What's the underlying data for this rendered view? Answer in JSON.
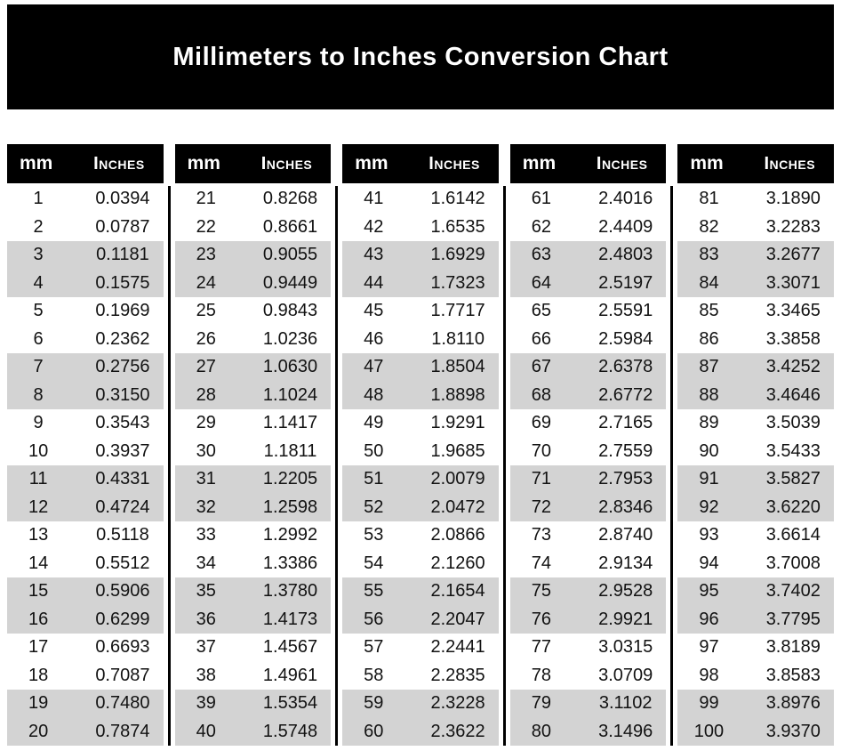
{
  "title": "Millimeters to Inches Conversion Chart",
  "header": {
    "mm": "mm",
    "inches": "Inches"
  },
  "layout": {
    "groups": 5,
    "rows_per_group": 20,
    "stripe_pattern": "pairs"
  },
  "colors": {
    "banner_bg": "#000000",
    "header_bg": "#000000",
    "header_text": "#ffffff",
    "stripe": "#d3d3d3",
    "row_bg": "#ffffff",
    "text": "#121212"
  },
  "chart_data": {
    "type": "table",
    "title": "Millimeters to Inches Conversion Chart",
    "columns": [
      "mm",
      "Inches"
    ],
    "rows": [
      [
        1,
        "0.0394"
      ],
      [
        2,
        "0.0787"
      ],
      [
        3,
        "0.1181"
      ],
      [
        4,
        "0.1575"
      ],
      [
        5,
        "0.1969"
      ],
      [
        6,
        "0.2362"
      ],
      [
        7,
        "0.2756"
      ],
      [
        8,
        "0.3150"
      ],
      [
        9,
        "0.3543"
      ],
      [
        10,
        "0.3937"
      ],
      [
        11,
        "0.4331"
      ],
      [
        12,
        "0.4724"
      ],
      [
        13,
        "0.5118"
      ],
      [
        14,
        "0.5512"
      ],
      [
        15,
        "0.5906"
      ],
      [
        16,
        "0.6299"
      ],
      [
        17,
        "0.6693"
      ],
      [
        18,
        "0.7087"
      ],
      [
        19,
        "0.7480"
      ],
      [
        20,
        "0.7874"
      ],
      [
        21,
        "0.8268"
      ],
      [
        22,
        "0.8661"
      ],
      [
        23,
        "0.9055"
      ],
      [
        24,
        "0.9449"
      ],
      [
        25,
        "0.9843"
      ],
      [
        26,
        "1.0236"
      ],
      [
        27,
        "1.0630"
      ],
      [
        28,
        "1.1024"
      ],
      [
        29,
        "1.1417"
      ],
      [
        30,
        "1.1811"
      ],
      [
        31,
        "1.2205"
      ],
      [
        32,
        "1.2598"
      ],
      [
        33,
        "1.2992"
      ],
      [
        34,
        "1.3386"
      ],
      [
        35,
        "1.3780"
      ],
      [
        36,
        "1.4173"
      ],
      [
        37,
        "1.4567"
      ],
      [
        38,
        "1.4961"
      ],
      [
        39,
        "1.5354"
      ],
      [
        40,
        "1.5748"
      ],
      [
        41,
        "1.6142"
      ],
      [
        42,
        "1.6535"
      ],
      [
        43,
        "1.6929"
      ],
      [
        44,
        "1.7323"
      ],
      [
        45,
        "1.7717"
      ],
      [
        46,
        "1.8110"
      ],
      [
        47,
        "1.8504"
      ],
      [
        48,
        "1.8898"
      ],
      [
        49,
        "1.9291"
      ],
      [
        50,
        "1.9685"
      ],
      [
        51,
        "2.0079"
      ],
      [
        52,
        "2.0472"
      ],
      [
        53,
        "2.0866"
      ],
      [
        54,
        "2.1260"
      ],
      [
        55,
        "2.1654"
      ],
      [
        56,
        "2.2047"
      ],
      [
        57,
        "2.2441"
      ],
      [
        58,
        "2.2835"
      ],
      [
        59,
        "2.3228"
      ],
      [
        60,
        "2.3622"
      ],
      [
        61,
        "2.4016"
      ],
      [
        62,
        "2.4409"
      ],
      [
        63,
        "2.4803"
      ],
      [
        64,
        "2.5197"
      ],
      [
        65,
        "2.5591"
      ],
      [
        66,
        "2.5984"
      ],
      [
        67,
        "2.6378"
      ],
      [
        68,
        "2.6772"
      ],
      [
        69,
        "2.7165"
      ],
      [
        70,
        "2.7559"
      ],
      [
        71,
        "2.7953"
      ],
      [
        72,
        "2.8346"
      ],
      [
        73,
        "2.8740"
      ],
      [
        74,
        "2.9134"
      ],
      [
        75,
        "2.9528"
      ],
      [
        76,
        "2.9921"
      ],
      [
        77,
        "3.0315"
      ],
      [
        78,
        "3.0709"
      ],
      [
        79,
        "3.1102"
      ],
      [
        80,
        "3.1496"
      ],
      [
        81,
        "3.1890"
      ],
      [
        82,
        "3.2283"
      ],
      [
        83,
        "3.2677"
      ],
      [
        84,
        "3.3071"
      ],
      [
        85,
        "3.3465"
      ],
      [
        86,
        "3.3858"
      ],
      [
        87,
        "3.4252"
      ],
      [
        88,
        "3.4646"
      ],
      [
        89,
        "3.5039"
      ],
      [
        90,
        "3.5433"
      ],
      [
        91,
        "3.5827"
      ],
      [
        92,
        "3.6220"
      ],
      [
        93,
        "3.6614"
      ],
      [
        94,
        "3.7008"
      ],
      [
        95,
        "3.7402"
      ],
      [
        96,
        "3.7795"
      ],
      [
        97,
        "3.8189"
      ],
      [
        98,
        "3.8583"
      ],
      [
        99,
        "3.8976"
      ],
      [
        100,
        "3.9370"
      ]
    ]
  }
}
